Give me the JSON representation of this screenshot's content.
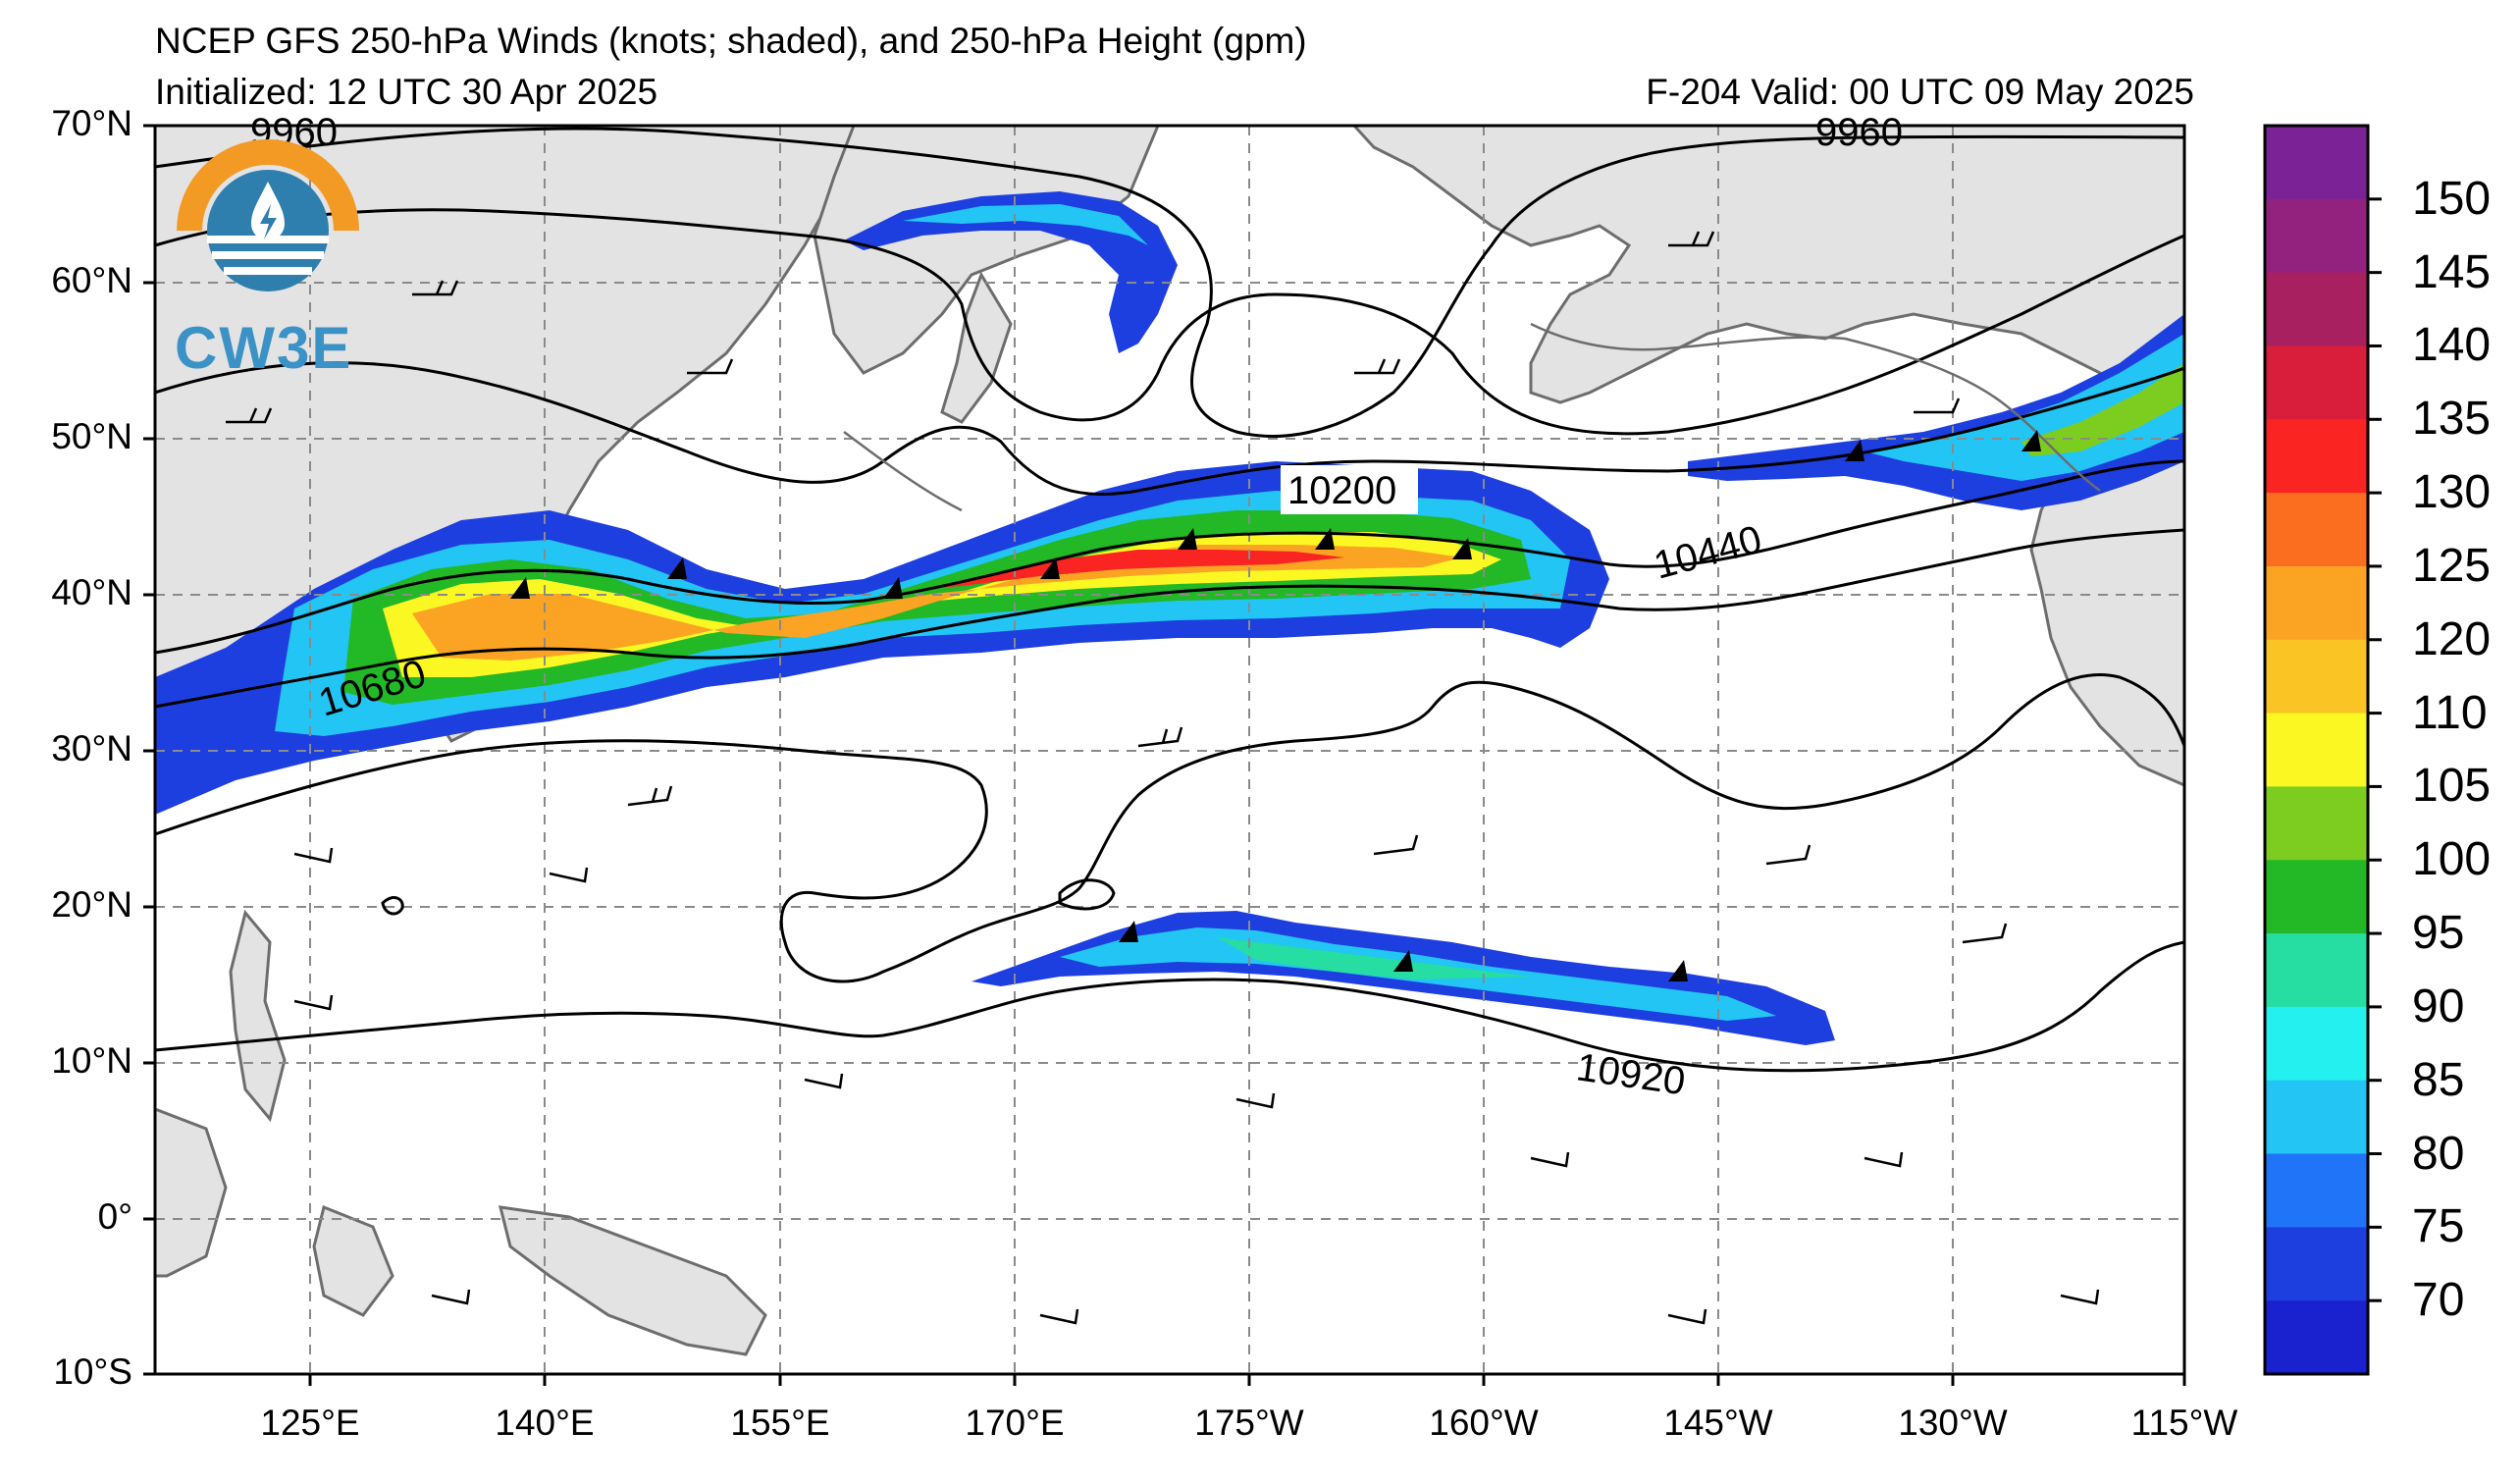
{
  "title": "NCEP GFS 250-hPa Winds (knots; shaded), and 250-hPa Height (gpm)",
  "initialized": "Initialized: 12 UTC 30 Apr 2025",
  "valid": "F-204  Valid: 00 UTC 09 May 2025",
  "logo_text": "CW3E",
  "y_axis_labels": [
    "70°N",
    "60°N",
    "50°N",
    "40°N",
    "30°N",
    "20°N",
    "10°N",
    "0°",
    "10°S"
  ],
  "x_axis_labels": [
    "125°E",
    "140°E",
    "155°E",
    "170°E",
    "175°W",
    "160°W",
    "145°W",
    "130°W",
    "115°W"
  ],
  "colorbar": {
    "labels": [
      "150",
      "145",
      "140",
      "135",
      "130",
      "125",
      "120",
      "110",
      "105",
      "100",
      "95",
      "90",
      "85",
      "80",
      "75",
      "70"
    ],
    "colors": [
      "#7b2296",
      "#92227e",
      "#a8205f",
      "#d81e3a",
      "#fa2423",
      "#fb6e20",
      "#fba323",
      "#fbc425",
      "#fbf722",
      "#7dcd20",
      "#22b826",
      "#26dda2",
      "#24f0ef",
      "#22c5f4",
      "#2074f8",
      "#1e3fe0",
      "#1a22d0"
    ]
  },
  "contour_labels": [
    "9960",
    "9960",
    "10200",
    "10440",
    "10680",
    "10920"
  ],
  "colors": {
    "land": "#e3e3e3",
    "coast": "#6d6d6d",
    "grid": "#8a8a8a",
    "contour": "#000000",
    "logo_orange": "#f39a24",
    "logo_blue": "#2e7fae"
  }
}
